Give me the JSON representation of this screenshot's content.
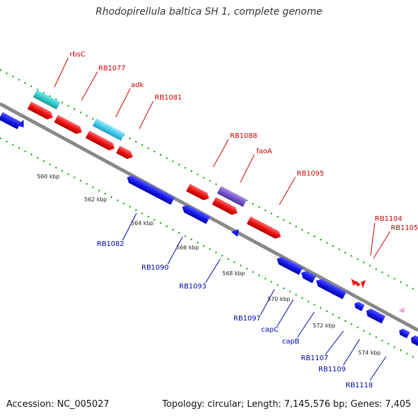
{
  "title": "Rhodopirellula baltica SH 1, complete genome",
  "footer": {
    "accession": "Accession: NC_005027",
    "topology": "Topology: circular; Length: 7,145,576 bp; Genes: 7,405"
  },
  "colors": {
    "forward_gene": "#ee1111",
    "reverse_gene": "#1a1aee",
    "forward_label": "#cc0000",
    "reverse_label": "#0000aa",
    "rrna_gene": "#33cccc",
    "trna_gene": "#44ccee",
    "other_gene": "#7755cc",
    "backbone": "#888888",
    "tick": "#009900"
  },
  "scale_ticks": [
    "560 kbp",
    "562 kbp",
    "564 kbp",
    "566 kbp",
    "568 kbp",
    "570 kbp",
    "572 kbp",
    "574 kbp"
  ],
  "forward_labels": [
    "rbsC",
    "RB1077",
    "adk",
    "RB1081",
    "RB1088",
    "faoA",
    "RB1095",
    "RB1104",
    "RB1105"
  ],
  "reverse_labels": [
    "RB1082",
    "RB1090",
    "RB1093",
    "RB1097",
    "capC",
    "capB",
    "RB1107",
    "RB1109",
    "RB1118"
  ]
}
